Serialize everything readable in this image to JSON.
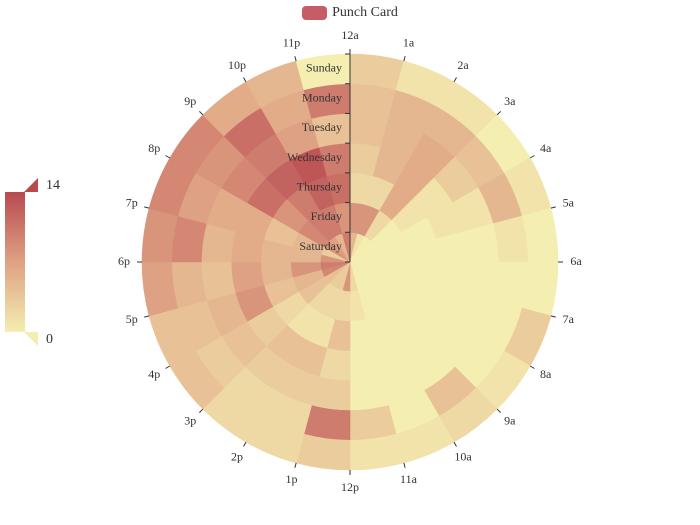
{
  "legend": {
    "label": "Punch Card",
    "color": "#c55c66"
  },
  "visual_map": {
    "max_label": "14",
    "min_label": "0",
    "min": 0,
    "max": 14,
    "colors": [
      "#f4eeb0",
      "#dfa183",
      "#b84a50"
    ]
  },
  "chart_data": {
    "type": "heatmap",
    "layout": "polar",
    "title": "Punch Card",
    "hours": [
      "12a",
      "1a",
      "2a",
      "3a",
      "4a",
      "5a",
      "6a",
      "7a",
      "8a",
      "9a",
      "10a",
      "11a",
      "12p",
      "1p",
      "2p",
      "3p",
      "4p",
      "5p",
      "6p",
      "7p",
      "8p",
      "9p",
      "10p",
      "11p"
    ],
    "days": [
      "Saturday",
      "Friday",
      "Thursday",
      "Wednesday",
      "Tuesday",
      "Monday",
      "Sunday"
    ],
    "values": [
      [
        5,
        1,
        0,
        0,
        0,
        0,
        0,
        0,
        0,
        0,
        0,
        2,
        8,
        3,
        3,
        4,
        9,
        10,
        8,
        3,
        8,
        7,
        5,
        10
      ],
      [
        8,
        8,
        2,
        0,
        0,
        0,
        0,
        0,
        0,
        0,
        0,
        1,
        2,
        2,
        2,
        4,
        5,
        8,
        5,
        5,
        9,
        10,
        10,
        8
      ],
      [
        2,
        2,
        6,
        1,
        0,
        0,
        0,
        0,
        0,
        0,
        0,
        0,
        4,
        1,
        1,
        2,
        4,
        5,
        5,
        4,
        8,
        10,
        12,
        11
      ],
      [
        3,
        5,
        6,
        1,
        1,
        0,
        0,
        0,
        0,
        0,
        0,
        0,
        2,
        4,
        4,
        3,
        8,
        7,
        6,
        6,
        11,
        12,
        13,
        10
      ],
      [
        4,
        5,
        6,
        3,
        1,
        0,
        0,
        0,
        0,
        0,
        0,
        0,
        3,
        3,
        3,
        4,
        5,
        4,
        5,
        6,
        9,
        10,
        7,
        4
      ],
      [
        4,
        5,
        5,
        4,
        5,
        1,
        0,
        0,
        0,
        4,
        0,
        3,
        10,
        2,
        2,
        3,
        4,
        5,
        9,
        7,
        8,
        11,
        6,
        10
      ],
      [
        3,
        1,
        1,
        0,
        1,
        0,
        0,
        3,
        1,
        2,
        1,
        1,
        3,
        2,
        2,
        4,
        4,
        7,
        8,
        9,
        9,
        6,
        5,
        0
      ]
    ]
  }
}
